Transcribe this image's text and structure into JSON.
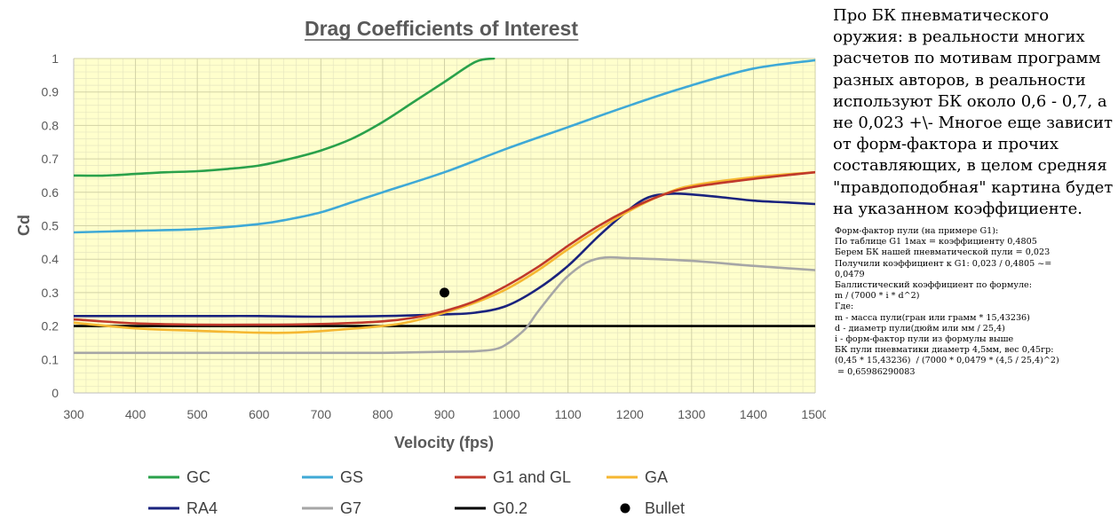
{
  "chart_data": {
    "type": "line",
    "title": "Drag Coefficients of Interest",
    "xlabel": "Velocity (fps)",
    "ylabel": "Cd",
    "xlim": [
      300,
      1500
    ],
    "ylim": [
      0,
      1
    ],
    "x_ticks": [
      "300",
      "400",
      "500",
      "600",
      "700",
      "800",
      "900",
      "1000",
      "1100",
      "1200",
      "1300",
      "1400",
      "1500"
    ],
    "y_ticks": [
      "0",
      "0.1",
      "0.2",
      "0.3",
      "0.4",
      "0.5",
      "0.6",
      "0.7",
      "0.8",
      "0.9",
      "1"
    ],
    "grid": true,
    "legend": "bottom",
    "series": [
      {
        "name": "GC",
        "color": "#2aa14b",
        "x": [
          300,
          350,
          400,
          450,
          500,
          550,
          600,
          650,
          700,
          750,
          800,
          850,
          900,
          950,
          980
        ],
        "y": [
          0.65,
          0.65,
          0.655,
          0.66,
          0.663,
          0.67,
          0.68,
          0.7,
          0.725,
          0.76,
          0.81,
          0.87,
          0.93,
          0.99,
          1.0
        ]
      },
      {
        "name": "GS",
        "color": "#3fa9d6",
        "x": [
          300,
          400,
          500,
          600,
          650,
          700,
          750,
          800,
          900,
          1000,
          1100,
          1200,
          1300,
          1400,
          1500
        ],
        "y": [
          0.48,
          0.485,
          0.49,
          0.505,
          0.52,
          0.54,
          0.57,
          0.6,
          0.66,
          0.73,
          0.795,
          0.86,
          0.92,
          0.97,
          0.995
        ]
      },
      {
        "name": "G1 and GL",
        "color": "#c0392b",
        "x": [
          300,
          400,
          500,
          600,
          700,
          800,
          850,
          900,
          950,
          1000,
          1050,
          1100,
          1150,
          1200,
          1250,
          1300,
          1400,
          1500
        ],
        "y": [
          0.22,
          0.208,
          0.204,
          0.204,
          0.206,
          0.214,
          0.225,
          0.245,
          0.275,
          0.32,
          0.375,
          0.44,
          0.5,
          0.55,
          0.59,
          0.615,
          0.64,
          0.66
        ]
      },
      {
        "name": "GA",
        "color": "#f5b731",
        "x": [
          300,
          400,
          500,
          600,
          650,
          700,
          800,
          850,
          900,
          950,
          1000,
          1050,
          1100,
          1150,
          1200,
          1250,
          1300,
          1400,
          1500
        ],
        "y": [
          0.21,
          0.193,
          0.186,
          0.18,
          0.18,
          0.185,
          0.2,
          0.215,
          0.24,
          0.27,
          0.31,
          0.365,
          0.43,
          0.49,
          0.545,
          0.59,
          0.62,
          0.645,
          0.66
        ]
      },
      {
        "name": "RA4",
        "color": "#1a237e",
        "x": [
          300,
          400,
          500,
          600,
          700,
          800,
          900,
          950,
          1000,
          1050,
          1100,
          1150,
          1200,
          1230,
          1260,
          1290,
          1350,
          1400,
          1450,
          1500
        ],
        "y": [
          0.23,
          0.23,
          0.23,
          0.23,
          0.228,
          0.23,
          0.235,
          0.24,
          0.26,
          0.31,
          0.38,
          0.47,
          0.55,
          0.585,
          0.595,
          0.595,
          0.585,
          0.575,
          0.57,
          0.565
        ]
      },
      {
        "name": "G7",
        "color": "#a6a6a6",
        "x": [
          300,
          400,
          500,
          600,
          700,
          800,
          900,
          950,
          980,
          1000,
          1030,
          1050,
          1080,
          1100,
          1130,
          1160,
          1200,
          1300,
          1400,
          1500
        ],
        "y": [
          0.12,
          0.12,
          0.12,
          0.12,
          0.12,
          0.12,
          0.123,
          0.125,
          0.13,
          0.145,
          0.19,
          0.24,
          0.31,
          0.35,
          0.39,
          0.405,
          0.403,
          0.395,
          0.38,
          0.367
        ]
      },
      {
        "name": "G0.2",
        "color": "#000000",
        "x": [
          300,
          1500
        ],
        "y": [
          0.2,
          0.2
        ]
      }
    ],
    "points": [
      {
        "name": "Bullet",
        "color": "#000000",
        "x": 900,
        "y": 0.3
      }
    ],
    "legend_items": [
      {
        "label": "GC",
        "color": "#2aa14b",
        "kind": "line"
      },
      {
        "label": "GS",
        "color": "#3fa9d6",
        "kind": "line"
      },
      {
        "label": "G1 and GL",
        "color": "#c0392b",
        "kind": "line"
      },
      {
        "label": "GA",
        "color": "#f5b731",
        "kind": "line"
      },
      {
        "label": "RA4",
        "color": "#1a237e",
        "kind": "line"
      },
      {
        "label": "G7",
        "color": "#a6a6a6",
        "kind": "line"
      },
      {
        "label": "G0.2",
        "color": "#000000",
        "kind": "line"
      },
      {
        "label": "Bullet",
        "color": "#000000",
        "kind": "marker"
      }
    ]
  },
  "note": {
    "main": "Про БК пневматического оружия: в реальности многих расчетов по мотивам программ разных авторов, в реальности используют БК около 0,6 - 0,7, а не 0,023 +\\- Многое еще зависит от форм-фактора и прочих составляющих, в целом средняя \"правдоподобная\" картина будет на указанном коэффициенте.",
    "calc_lines": [
      "Форм-фактор пули (на примере G1):",
      "По таблице G1 1мах = коэффициенту 0,4805",
      "Берем БК нашей пневматической пули = 0,023",
      "Получили коэффициент к G1: 0,023 / 0,4805 ~=",
      "0,0479",
      "Баллистический коэффициент по формуле:",
      "m / (7000 * i * d^2)",
      "Где:",
      "m - масса пули(гран или грамм * 15,43236)",
      "d - диаметр пули(дюйм или мм / 25,4)",
      "i - форм-фактор пули из формулы выше",
      "БК пули пневматики диаметр 4,5мм, вес 0,45гр:",
      "(0,45 * 15,43236)  / (7000 * 0,0479 * (4,5 / 25,4)^2)",
      " = 0,65986290083"
    ]
  }
}
